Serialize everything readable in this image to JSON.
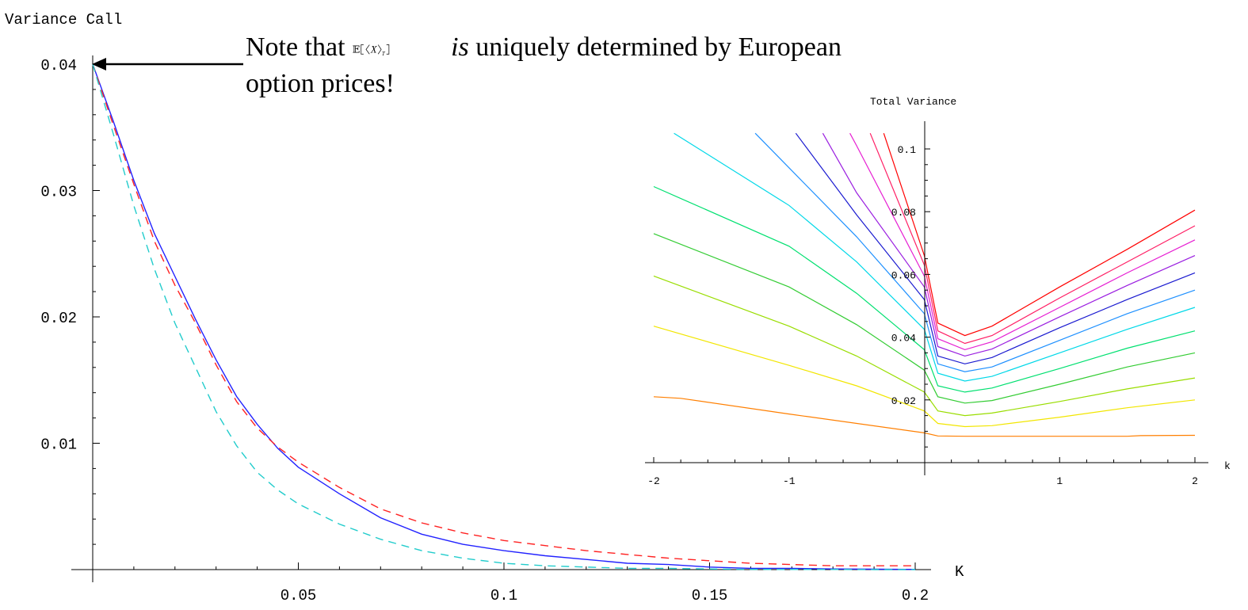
{
  "annotation": {
    "line1_prefix": "Note that ",
    "formula_E": "𝔼",
    "formula_X": "X",
    "formula_sub": "T",
    "line1_is": "is",
    "line1_suffix": " uniquely determined by European",
    "line2": "option prices!"
  },
  "chart_data": [
    {
      "type": "line",
      "title": "",
      "ylabel": "Variance   Call",
      "xlabel": "K",
      "xlim": [
        0,
        0.2
      ],
      "ylim": [
        0,
        0.04
      ],
      "x_ticks": [
        0.05,
        0.1,
        0.15,
        0.2
      ],
      "x_tick_labels": [
        "0.05",
        "0.1",
        "0.15",
        "0.2"
      ],
      "y_ticks": [
        0.01,
        0.02,
        0.03,
        0.04
      ],
      "y_tick_labels": [
        "0.01",
        "0.02",
        "0.03",
        "0.04"
      ],
      "grid": false,
      "series": [
        {
          "color": "#2222ff",
          "dash": "solid",
          "x": [
            0,
            0.005,
            0.01,
            0.015,
            0.02,
            0.025,
            0.03,
            0.035,
            0.04,
            0.045,
            0.05,
            0.06,
            0.07,
            0.08,
            0.09,
            0.1,
            0.11,
            0.12,
            0.13,
            0.14,
            0.15,
            0.16,
            0.17,
            0.18,
            0.19,
            0.2
          ],
          "y": [
            0.04,
            0.0355,
            0.0308,
            0.0266,
            0.0232,
            0.0198,
            0.0166,
            0.0137,
            0.0115,
            0.0096,
            0.0081,
            0.006,
            0.0041,
            0.0028,
            0.002,
            0.0015,
            0.0011,
            0.0008,
            0.0005,
            0.0004,
            0.0002,
            0.0001,
            0.0001,
            5e-05,
            3e-05,
            2e-05
          ]
        },
        {
          "color": "#ff2222",
          "dash": "dashed",
          "x": [
            0,
            0.005,
            0.01,
            0.015,
            0.02,
            0.025,
            0.03,
            0.035,
            0.04,
            0.045,
            0.05,
            0.06,
            0.07,
            0.08,
            0.09,
            0.1,
            0.11,
            0.12,
            0.13,
            0.14,
            0.15,
            0.16,
            0.17,
            0.18,
            0.19,
            0.2
          ],
          "y": [
            0.04,
            0.0352,
            0.0305,
            0.026,
            0.0225,
            0.0195,
            0.0162,
            0.0133,
            0.0112,
            0.0097,
            0.0085,
            0.0065,
            0.0048,
            0.0037,
            0.0029,
            0.0023,
            0.0019,
            0.0015,
            0.0012,
            0.0009,
            0.0007,
            0.0005,
            0.0004,
            0.0003,
            0.0003,
            0.0003
          ]
        },
        {
          "color": "#22cccc",
          "dash": "dashed",
          "x": [
            0,
            0.005,
            0.01,
            0.015,
            0.02,
            0.025,
            0.03,
            0.035,
            0.04,
            0.045,
            0.05,
            0.06,
            0.07,
            0.08,
            0.09,
            0.1,
            0.11,
            0.12,
            0.13,
            0.14,
            0.15,
            0.16,
            0.17,
            0.18,
            0.19,
            0.2
          ],
          "y": [
            0.04,
            0.0345,
            0.0288,
            0.0238,
            0.0195,
            0.016,
            0.0125,
            0.0098,
            0.0077,
            0.0063,
            0.0052,
            0.0036,
            0.0024,
            0.0015,
            0.0009,
            0.0005,
            0.0003,
            0.0002,
            0.0001,
            0.0001,
            5e-05,
            2e-05,
            1e-05,
            1e-05,
            0,
            0
          ]
        }
      ]
    },
    {
      "type": "line",
      "title": "",
      "ylabel": "Total  Variance",
      "xlabel": "k",
      "xlim": [
        -2,
        2
      ],
      "ylim": [
        0,
        0.105
      ],
      "x_ticks": [
        -2,
        -1,
        1,
        2
      ],
      "x_tick_labels": [
        "-2",
        "-1",
        "1",
        "2"
      ],
      "y_ticks": [
        0.02,
        0.04,
        0.06,
        0.08,
        0.1
      ],
      "y_tick_labels": [
        "0.02",
        "0.04",
        "0.06",
        "0.08",
        "0.1"
      ],
      "grid": false,
      "series": [
        {
          "color": "#ff7f00",
          "x": [
            -2,
            -1.8,
            -1,
            0,
            0.1,
            0.3,
            0.7,
            1,
            1.5,
            1.6,
            2
          ],
          "y": [
            0.021,
            0.0205,
            0.0155,
            0.0095,
            0.0085,
            0.0084,
            0.0084,
            0.0084,
            0.0084,
            0.0086,
            0.0087
          ]
        },
        {
          "color": "#f2e600",
          "x": [
            -2,
            -1,
            -0.5,
            0,
            0.1,
            0.3,
            0.5,
            1,
            1.5,
            2
          ],
          "y": [
            0.0435,
            0.031,
            0.0245,
            0.0165,
            0.0125,
            0.0115,
            0.0118,
            0.0145,
            0.0175,
            0.02
          ]
        },
        {
          "color": "#99dd00",
          "x": [
            -2,
            -1,
            -0.5,
            0,
            0.1,
            0.3,
            0.5,
            1,
            1.5,
            2
          ],
          "y": [
            0.0595,
            0.0435,
            0.034,
            0.0225,
            0.0165,
            0.015,
            0.0158,
            0.0195,
            0.0235,
            0.027
          ]
        },
        {
          "color": "#33cc33",
          "x": [
            -2,
            -1,
            -0.5,
            0,
            0.1,
            0.3,
            0.5,
            1,
            1.5,
            2
          ],
          "y": [
            0.073,
            0.056,
            0.044,
            0.0295,
            0.021,
            0.019,
            0.0198,
            0.025,
            0.0305,
            0.035
          ]
        },
        {
          "color": "#00e070",
          "x": [
            -2,
            -1,
            -0.5,
            0,
            0.1,
            0.3,
            0.5,
            1,
            1.5,
            2
          ],
          "y": [
            0.088,
            0.069,
            0.054,
            0.036,
            0.0245,
            0.0225,
            0.0238,
            0.03,
            0.0365,
            0.042
          ]
        },
        {
          "color": "#00d8e8",
          "x": [
            -1.85,
            -1,
            -0.5,
            0,
            0.1,
            0.3,
            0.5,
            1,
            1.5,
            2
          ],
          "y": [
            0.105,
            0.082,
            0.064,
            0.0425,
            0.0285,
            0.026,
            0.0275,
            0.035,
            0.0425,
            0.0495
          ]
        },
        {
          "color": "#1e90ff",
          "x": [
            -1.25,
            -1,
            -0.5,
            0,
            0.1,
            0.3,
            0.5,
            1,
            1.5,
            2
          ],
          "y": [
            0.105,
            0.094,
            0.072,
            0.0475,
            0.0315,
            0.029,
            0.0305,
            0.039,
            0.0475,
            0.055
          ]
        },
        {
          "color": "#1a1ad0",
          "x": [
            -0.95,
            -0.5,
            0,
            0.1,
            0.3,
            0.5,
            1,
            1.5,
            2
          ],
          "y": [
            0.105,
            0.079,
            0.052,
            0.034,
            0.0315,
            0.0335,
            0.043,
            0.052,
            0.0605
          ]
        },
        {
          "color": "#9a1ee0",
          "x": [
            -0.75,
            -0.5,
            0,
            0.1,
            0.3,
            0.5,
            1,
            1.5,
            2
          ],
          "y": [
            0.105,
            0.086,
            0.056,
            0.037,
            0.034,
            0.0362,
            0.0465,
            0.0565,
            0.066
          ]
        },
        {
          "color": "#e61ed2",
          "x": [
            -0.55,
            -0.5,
            0,
            0.1,
            0.3,
            0.5,
            1,
            1.5,
            2
          ],
          "y": [
            0.105,
            0.101,
            0.0595,
            0.0395,
            0.036,
            0.0385,
            0.0495,
            0.0605,
            0.071
          ]
        },
        {
          "color": "#ff1e64",
          "x": [
            -0.4,
            0,
            0.1,
            0.3,
            0.5,
            1,
            1.5,
            2
          ],
          "y": [
            0.105,
            0.063,
            0.042,
            0.038,
            0.0405,
            0.0525,
            0.064,
            0.0755
          ]
        },
        {
          "color": "#ff0000",
          "x": [
            -0.3,
            0,
            0.1,
            0.3,
            0.5,
            1,
            1.5,
            2
          ],
          "y": [
            0.105,
            0.066,
            0.0445,
            0.0405,
            0.0435,
            0.056,
            0.068,
            0.0805
          ]
        }
      ]
    }
  ]
}
